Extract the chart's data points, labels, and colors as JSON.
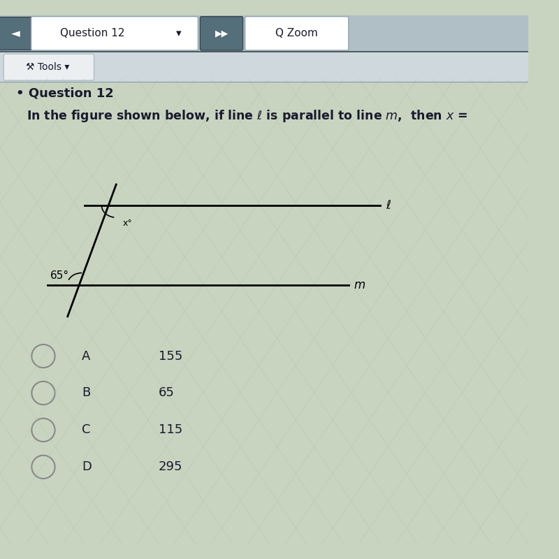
{
  "bg_color_main": "#c8d4c0",
  "bg_color_nav": "#b0bec5",
  "bg_color_tools": "#cfd8dc",
  "question_label": "Question 12",
  "question_text": "In the figure shown below, if line ℓ is parallel to line m,  then x =",
  "line_l_label": "ℓ",
  "line_m_label": "m",
  "angle_x_label": "x°",
  "angle_65_label": "65°",
  "choices": [
    {
      "letter": "A",
      "value": "155"
    },
    {
      "letter": "B",
      "value": "65"
    },
    {
      "letter": "C",
      "value": "115"
    },
    {
      "letter": "D",
      "value": "295"
    }
  ]
}
